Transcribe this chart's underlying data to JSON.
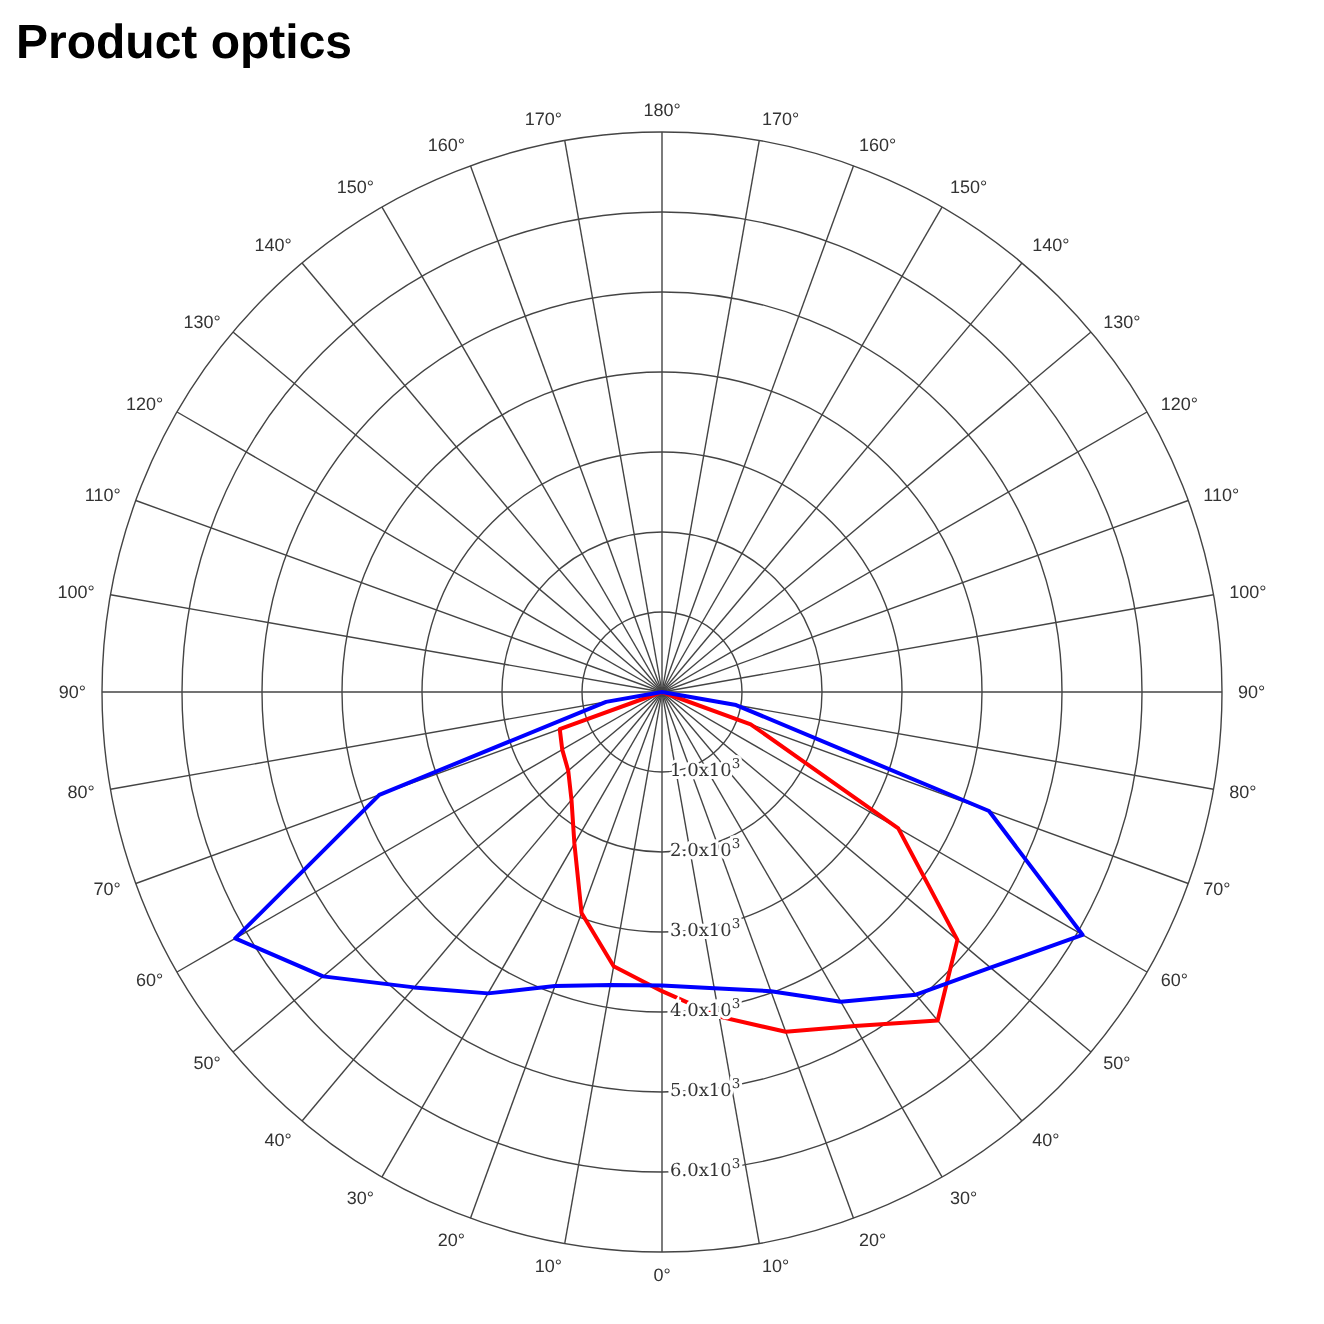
{
  "chart_data": {
    "type": "radar",
    "title": "Product optics",
    "categories": [
      "180°",
      "170°",
      "160°",
      "150°",
      "140°",
      "130°",
      "120°",
      "110°",
      "100°",
      "90°",
      "80°",
      "70°",
      "60°",
      "50°",
      "40°",
      "30°",
      "20°",
      "10°",
      "0°",
      "10°",
      "20°",
      "30°",
      "40°",
      "50°",
      "60°",
      "70°",
      "80°",
      "90°",
      "100°",
      "110°",
      "120°",
      "130°",
      "140°",
      "150°",
      "160°",
      "170°"
    ],
    "series": [
      {
        "color": "#ff0000",
        "values": [
          0,
          0,
          0,
          0,
          0,
          0,
          0,
          0,
          0,
          0,
          0,
          1180,
          3410,
          4820,
          5360,
          4820,
          4520,
          4120,
          3740,
          3480,
          2940,
          2190,
          1760,
          1530,
          1440,
          1360,
          0,
          0,
          0,
          0,
          0,
          0,
          0,
          0,
          0,
          0
        ]
      },
      {
        "color": "#0000ff",
        "values": [
          0,
          0,
          0,
          0,
          0,
          0,
          0,
          0,
          0,
          0,
          940,
          4350,
          6070,
          5360,
          4940,
          4470,
          3980,
          3760,
          3670,
          3720,
          3910,
          4350,
          4820,
          5530,
          6160,
          3760,
          710,
          0,
          0,
          0,
          0,
          0,
          0,
          0,
          0,
          0
        ]
      }
    ],
    "ylim": [
      0,
      7000
    ],
    "yticks": [
      {
        "value": 1000,
        "label": "1.0x10$^{3}$"
      },
      {
        "value": 2000,
        "label": "2.0x10$^{3}$"
      },
      {
        "value": 3000,
        "label": "3.0x10$^{3}$"
      },
      {
        "value": 4000,
        "label": "4.0x10$^{3}$"
      },
      {
        "value": 5000,
        "label": "5.0x10$^{3}$"
      },
      {
        "value": 6000,
        "label": "6.0x10$^{3}$"
      }
    ],
    "grid": true
  }
}
